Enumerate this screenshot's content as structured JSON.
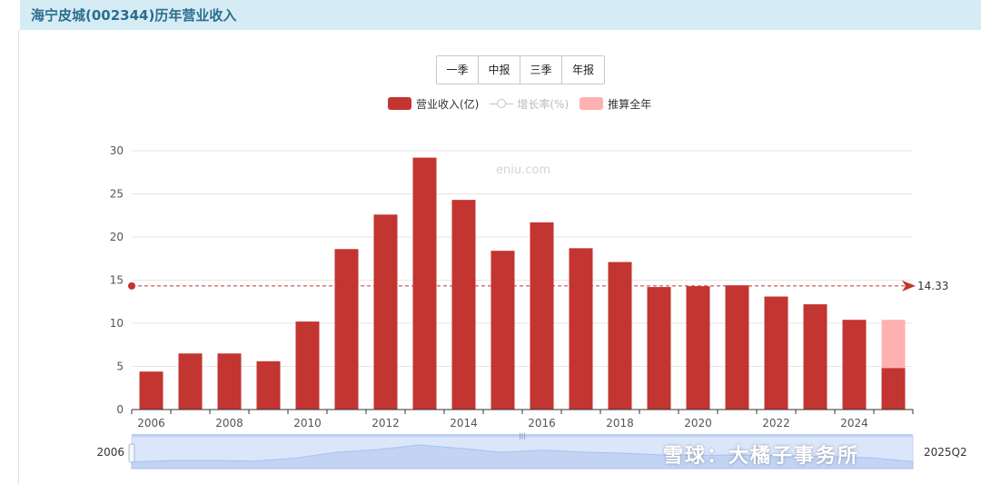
{
  "header": {
    "title": "海宁皮城(002344)历年营业收入"
  },
  "tabs": [
    "一季",
    "中报",
    "三季",
    "年报"
  ],
  "legend": [
    {
      "label": "营业收入(亿)",
      "color": "#c23531"
    },
    {
      "label": "增长率(%)",
      "color": "#c4c4c4"
    },
    {
      "label": "推算全年",
      "color": "#ffb0b0"
    }
  ],
  "watermark": "eniu.com",
  "logo_text": "雪球：大橘子事务所",
  "slider": {
    "start_label": "2006",
    "end_label": "2025Q2"
  },
  "chart_data": {
    "type": "bar",
    "title": "",
    "xlabel": "",
    "ylabel": "",
    "ylim": [
      0,
      30
    ],
    "yticks": [
      0,
      5,
      10,
      15,
      20,
      25,
      30
    ],
    "categories": [
      "2006",
      "2007",
      "2008",
      "2009",
      "2010",
      "2011",
      "2012",
      "2013",
      "2014",
      "2015",
      "2016",
      "2017",
      "2018",
      "2019",
      "2020",
      "2021",
      "2022",
      "2023",
      "2024",
      "2025Q2"
    ],
    "xtick_labels": [
      "2006",
      "2008",
      "2010",
      "2012",
      "2014",
      "2016",
      "2018",
      "2020",
      "2022",
      "2024"
    ],
    "series": [
      {
        "name": "营业收入(亿)",
        "color": "#c23531",
        "values": [
          4.4,
          6.5,
          6.5,
          5.6,
          10.2,
          18.6,
          22.6,
          29.2,
          24.3,
          18.4,
          21.7,
          18.7,
          17.1,
          14.2,
          14.3,
          14.4,
          13.1,
          12.2,
          10.4,
          4.8
        ]
      },
      {
        "name": "推算全年",
        "color": "#ffb0b0",
        "values": [
          null,
          null,
          null,
          null,
          null,
          null,
          null,
          null,
          null,
          null,
          null,
          null,
          null,
          null,
          null,
          null,
          null,
          null,
          null,
          10.4
        ]
      }
    ],
    "average_line": {
      "value": 14.33,
      "label": "14.33",
      "color": "#c23531"
    },
    "grid": true
  }
}
